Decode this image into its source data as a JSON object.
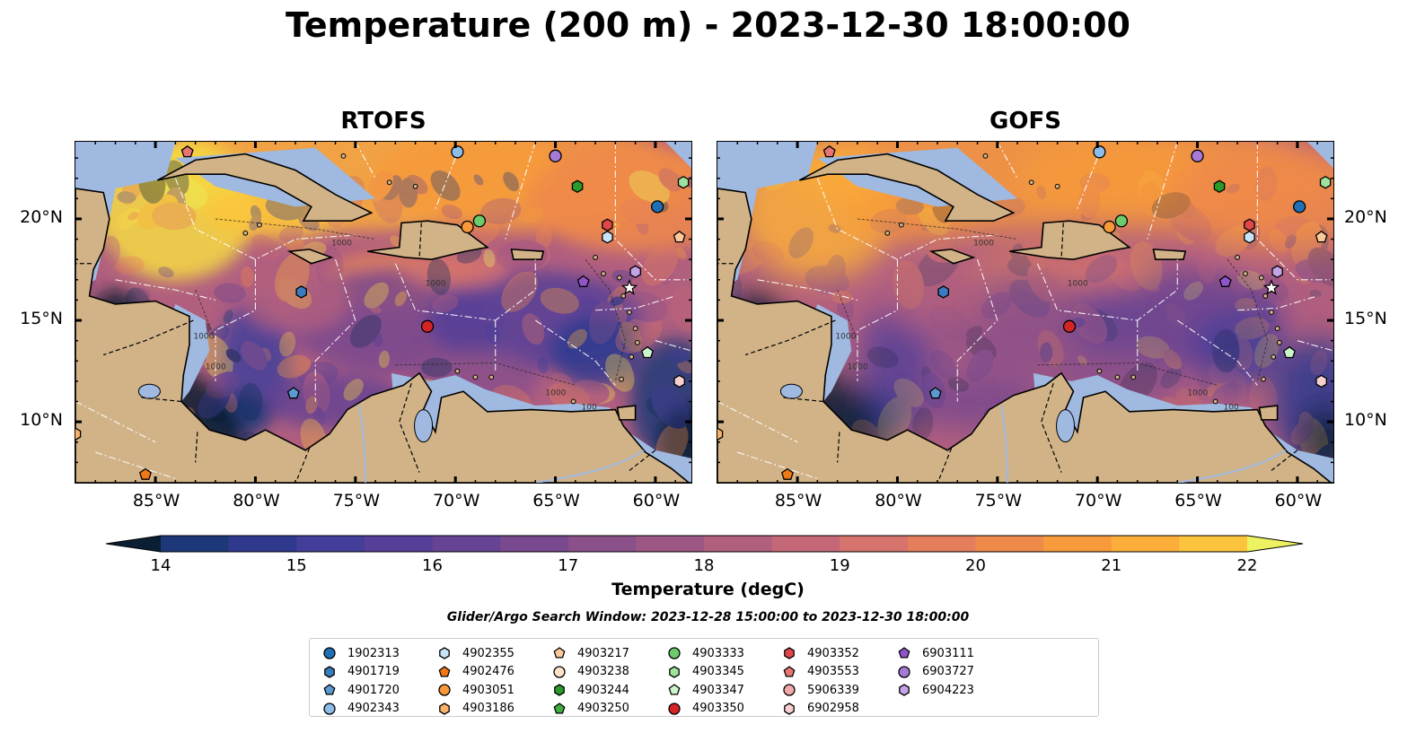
{
  "title": "Temperature (200 m) - 2023-12-30 18:00:00",
  "panels": [
    {
      "title": "RTOFS"
    },
    {
      "title": "GOFS"
    }
  ],
  "axes": {
    "lon_ticks": [
      "85°W",
      "80°W",
      "75°W",
      "70°W",
      "65°W",
      "60°W"
    ],
    "lat_ticks": [
      "20°N",
      "15°N",
      "10°N"
    ]
  },
  "colorbar": {
    "label": "Temperature (degC)",
    "ticks": [
      "14",
      "15",
      "16",
      "17",
      "18",
      "19",
      "20",
      "21",
      "22"
    ],
    "colors": [
      "#0a1f33",
      "#12305a",
      "#1c3878",
      "#2f3a8f",
      "#433e9a",
      "#553f98",
      "#664393",
      "#78498e",
      "#8a508a",
      "#9d5785",
      "#b15f7f",
      "#c46877",
      "#d6736c",
      "#e57e5c",
      "#f08a4a",
      "#f79a3c",
      "#fbae3a",
      "#fbc43c",
      "#f6dc43",
      "#ecf260"
    ]
  },
  "contour_labels": [
    "1000",
    "1000",
    "1000",
    "1000",
    "100",
    "1000"
  ],
  "search_window": "Glider/Argo Search Window: 2023-12-28 15:00:00 to 2023-12-30 18:00:00",
  "legend": [
    {
      "id": "1902313",
      "marker": "circle",
      "color": "#1f6fb4"
    },
    {
      "id": "4901719",
      "marker": "hexagon",
      "color": "#3a7cc0"
    },
    {
      "id": "4901720",
      "marker": "pentagon",
      "color": "#5a9ad0"
    },
    {
      "id": "4902343",
      "marker": "circle",
      "color": "#8cbde8"
    },
    {
      "id": "4902355",
      "marker": "hexagon",
      "color": "#c9e4f6"
    },
    {
      "id": "4902476",
      "marker": "pentagon",
      "color": "#f07818"
    },
    {
      "id": "4903051",
      "marker": "circle",
      "color": "#f89838"
    },
    {
      "id": "4903186",
      "marker": "hexagon",
      "color": "#fbb16a"
    },
    {
      "id": "4903217",
      "marker": "pentagon",
      "color": "#fcc99a"
    },
    {
      "id": "4903238",
      "marker": "circle",
      "color": "#fde2c8"
    },
    {
      "id": "4903244",
      "marker": "hexagon",
      "color": "#2a9a2a"
    },
    {
      "id": "4903250",
      "marker": "pentagon",
      "color": "#3fae3f"
    },
    {
      "id": "4903333",
      "marker": "circle",
      "color": "#6ccc6c"
    },
    {
      "id": "4903345",
      "marker": "hexagon",
      "color": "#9ee29e"
    },
    {
      "id": "4903347",
      "marker": "pentagon",
      "color": "#ccf5cc"
    },
    {
      "id": "4903350",
      "marker": "circle",
      "color": "#d42424"
    },
    {
      "id": "4903352",
      "marker": "hexagon",
      "color": "#e04848"
    },
    {
      "id": "4903553",
      "marker": "pentagon",
      "color": "#e87474"
    },
    {
      "id": "5906339",
      "marker": "circle",
      "color": "#f2a8a8"
    },
    {
      "id": "6902958",
      "marker": "hexagon",
      "color": "#f8d0d0"
    },
    {
      "id": "6903111",
      "marker": "pentagon",
      "color": "#9055c8"
    },
    {
      "id": "6903727",
      "marker": "circle",
      "color": "#a87ad8"
    },
    {
      "id": "6904223",
      "marker": "hexagon",
      "color": "#c4a4e8"
    }
  ],
  "map_markers": [
    {
      "id": "4903553",
      "lon": -83.4,
      "lat": 23.3
    },
    {
      "id": "4902343",
      "lon": -69.9,
      "lat": 23.3
    },
    {
      "id": "6903727",
      "lon": -65.0,
      "lat": 23.1
    },
    {
      "id": "4903244",
      "lon": -63.9,
      "lat": 21.6
    },
    {
      "id": "4903345",
      "lon": -58.6,
      "lat": 21.8
    },
    {
      "id": "1902313",
      "lon": -59.9,
      "lat": 20.6
    },
    {
      "id": "4903333",
      "lon": -68.8,
      "lat": 19.9
    },
    {
      "id": "4903051",
      "lon": -69.4,
      "lat": 19.6
    },
    {
      "id": "4903352",
      "lon": -62.4,
      "lat": 19.7
    },
    {
      "id": "4902355",
      "lon": -62.4,
      "lat": 19.1
    },
    {
      "id": "4903217",
      "lon": -58.8,
      "lat": 19.1
    },
    {
      "id": "6904223",
      "lon": -61.0,
      "lat": 17.4
    },
    {
      "id": "6903111",
      "lon": -63.6,
      "lat": 16.9
    },
    {
      "id": "4901719",
      "lon": -77.7,
      "lat": 16.4
    },
    {
      "id": "4903350",
      "lon": -71.4,
      "lat": 14.7
    },
    {
      "id": "4903347",
      "lon": -60.4,
      "lat": 13.4
    },
    {
      "id": "6902958",
      "lon": -58.8,
      "lat": 12.0
    },
    {
      "id": "4901720",
      "lon": -78.1,
      "lat": 11.4
    },
    {
      "id": "4902476",
      "lon": -85.5,
      "lat": 7.4
    },
    {
      "id": "4903186",
      "lon": -89.0,
      "lat": 9.4
    }
  ]
}
